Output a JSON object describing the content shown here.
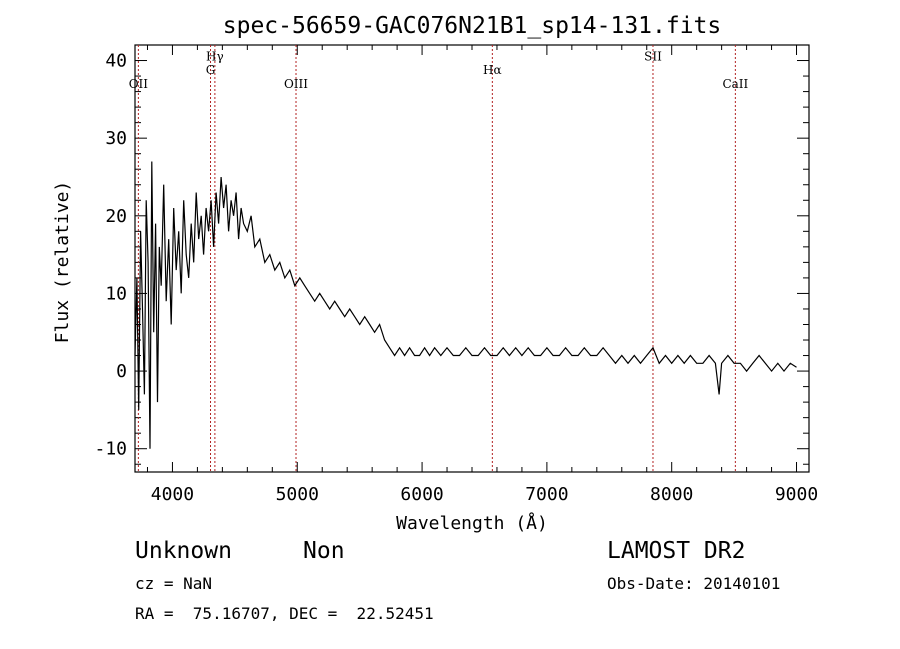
{
  "chart_data": {
    "type": "line",
    "title": "spec-56659-GAC076N21B1_sp14-131.fits",
    "xlabel": "Wavelength (Å)",
    "ylabel": "Flux (relative)",
    "xlim": [
      3700,
      9100
    ],
    "ylim": [
      -13,
      42
    ],
    "xticks": [
      4000,
      5000,
      6000,
      7000,
      8000,
      9000
    ],
    "yticks": [
      -10,
      0,
      10,
      20,
      30,
      40
    ],
    "grid": false,
    "line_color": "#000000",
    "marker_color": "#b22222",
    "lines": [
      {
        "label": "OII",
        "x": 3727,
        "label_y": 37
      },
      {
        "label": "Hγ",
        "x": 4340,
        "label_y": 40.5
      },
      {
        "label": "G",
        "x": 4305,
        "label_y": 38.8
      },
      {
        "label": "OIII",
        "x": 4990,
        "label_y": 37
      },
      {
        "label": "Hα",
        "x": 6563,
        "label_y": 38.8
      },
      {
        "label": "SII",
        "x": 7850,
        "label_y": 40.5
      },
      {
        "label": "CaII",
        "x": 8510,
        "label_y": 37
      }
    ],
    "x": [
      3700,
      3715,
      3730,
      3745,
      3760,
      3775,
      3790,
      3805,
      3820,
      3835,
      3850,
      3865,
      3880,
      3895,
      3910,
      3930,
      3950,
      3970,
      3990,
      4010,
      4030,
      4050,
      4070,
      4090,
      4110,
      4130,
      4150,
      4170,
      4190,
      4210,
      4230,
      4250,
      4270,
      4290,
      4310,
      4330,
      4350,
      4370,
      4390,
      4410,
      4430,
      4450,
      4470,
      4490,
      4510,
      4530,
      4550,
      4570,
      4600,
      4630,
      4660,
      4700,
      4740,
      4780,
      4820,
      4860,
      4900,
      4940,
      4980,
      5020,
      5060,
      5100,
      5140,
      5180,
      5220,
      5260,
      5300,
      5340,
      5380,
      5420,
      5460,
      5500,
      5540,
      5580,
      5620,
      5660,
      5700,
      5740,
      5780,
      5820,
      5860,
      5900,
      5940,
      5980,
      6020,
      6060,
      6100,
      6150,
      6200,
      6250,
      6300,
      6350,
      6400,
      6450,
      6500,
      6550,
      6600,
      6650,
      6700,
      6750,
      6800,
      6850,
      6900,
      6950,
      7000,
      7050,
      7100,
      7150,
      7200,
      7250,
      7300,
      7350,
      7400,
      7450,
      7500,
      7550,
      7600,
      7650,
      7700,
      7750,
      7800,
      7850,
      7900,
      7950,
      8000,
      8050,
      8100,
      8150,
      8200,
      8250,
      8300,
      8350,
      8380,
      8400,
      8450,
      8500,
      8550,
      8600,
      8650,
      8700,
      8750,
      8800,
      8850,
      8900,
      8950,
      9000
    ],
    "y": [
      2,
      12,
      -5,
      18,
      8,
      -3,
      22,
      14,
      -10,
      27,
      5,
      19,
      -4,
      16,
      11,
      24,
      9,
      17,
      6,
      21,
      13,
      18,
      10,
      22,
      15,
      12,
      19,
      14,
      23,
      17,
      20,
      15,
      21,
      18,
      22,
      16,
      23,
      19,
      25,
      21,
      24,
      18,
      22,
      20,
      23,
      17,
      21,
      19,
      18,
      20,
      16,
      17,
      14,
      15,
      13,
      14,
      12,
      13,
      11,
      12,
      11,
      10,
      9,
      10,
      9,
      8,
      9,
      8,
      7,
      8,
      7,
      6,
      7,
      6,
      5,
      6,
      4,
      3,
      2,
      3,
      2,
      3,
      2,
      2,
      3,
      2,
      3,
      2,
      3,
      2,
      2,
      3,
      2,
      2,
      3,
      2,
      2,
      3,
      2,
      3,
      2,
      3,
      2,
      2,
      3,
      2,
      2,
      3,
      2,
      2,
      3,
      2,
      2,
      3,
      2,
      1,
      2,
      1,
      2,
      1,
      2,
      3,
      1,
      2,
      1,
      2,
      1,
      2,
      1,
      1,
      2,
      1,
      -3,
      1,
      2,
      1,
      1,
      0,
      1,
      2,
      1,
      0,
      1,
      0,
      1,
      0.5
    ]
  },
  "footer": {
    "object_class": "Unknown",
    "object_subclass": "Non",
    "survey": "LAMOST DR2",
    "redshift": "cz = NaN",
    "obs_date": "Obs-Date: 20140101",
    "coords": "RA =  75.16707, DEC =  22.52451"
  }
}
